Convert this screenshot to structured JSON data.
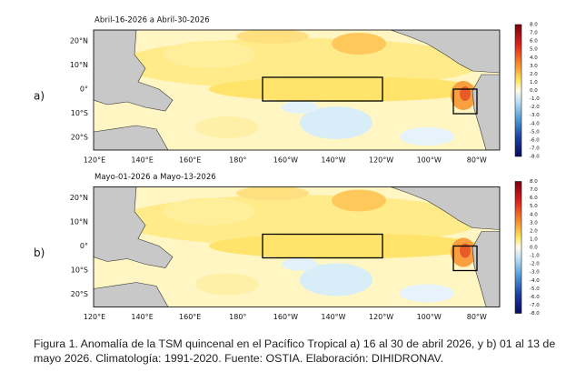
{
  "panels": [
    {
      "label": "a)",
      "title": "Abril-16-2026 a Abril-30-2026"
    },
    {
      "label": "b)",
      "title": "Mayo-01-2026 a Mayo-13-2026"
    }
  ],
  "lat_labels": [
    "20°N",
    "10°N",
    "0°",
    "10°S",
    "20°S"
  ],
  "lon_labels": [
    "120°E",
    "140°E",
    "160°E",
    "180°",
    "160°W",
    "140°W",
    "120°W",
    "100°W",
    "80°W"
  ],
  "colorbar_labels": [
    "8.0",
    "7.0",
    "6.0",
    "5.0",
    "4.0",
    "3.0",
    "2.0",
    "1.0",
    "0.0",
    "-1.0",
    "-2.0",
    "-3.0",
    "-4.0",
    "-5.0",
    "-6.0",
    "-7.0",
    "-8.0"
  ],
  "caption": "Figura 1. Anomalía de la TSM quincenal en el Pacífico Tropical a) 16 al 30 de abril 2026, y b) 01 al 13 de mayo 2026. Climatología: 1991-2020. Fuente: OSTIA. Elaboración: DIHIDRONAV."
}
